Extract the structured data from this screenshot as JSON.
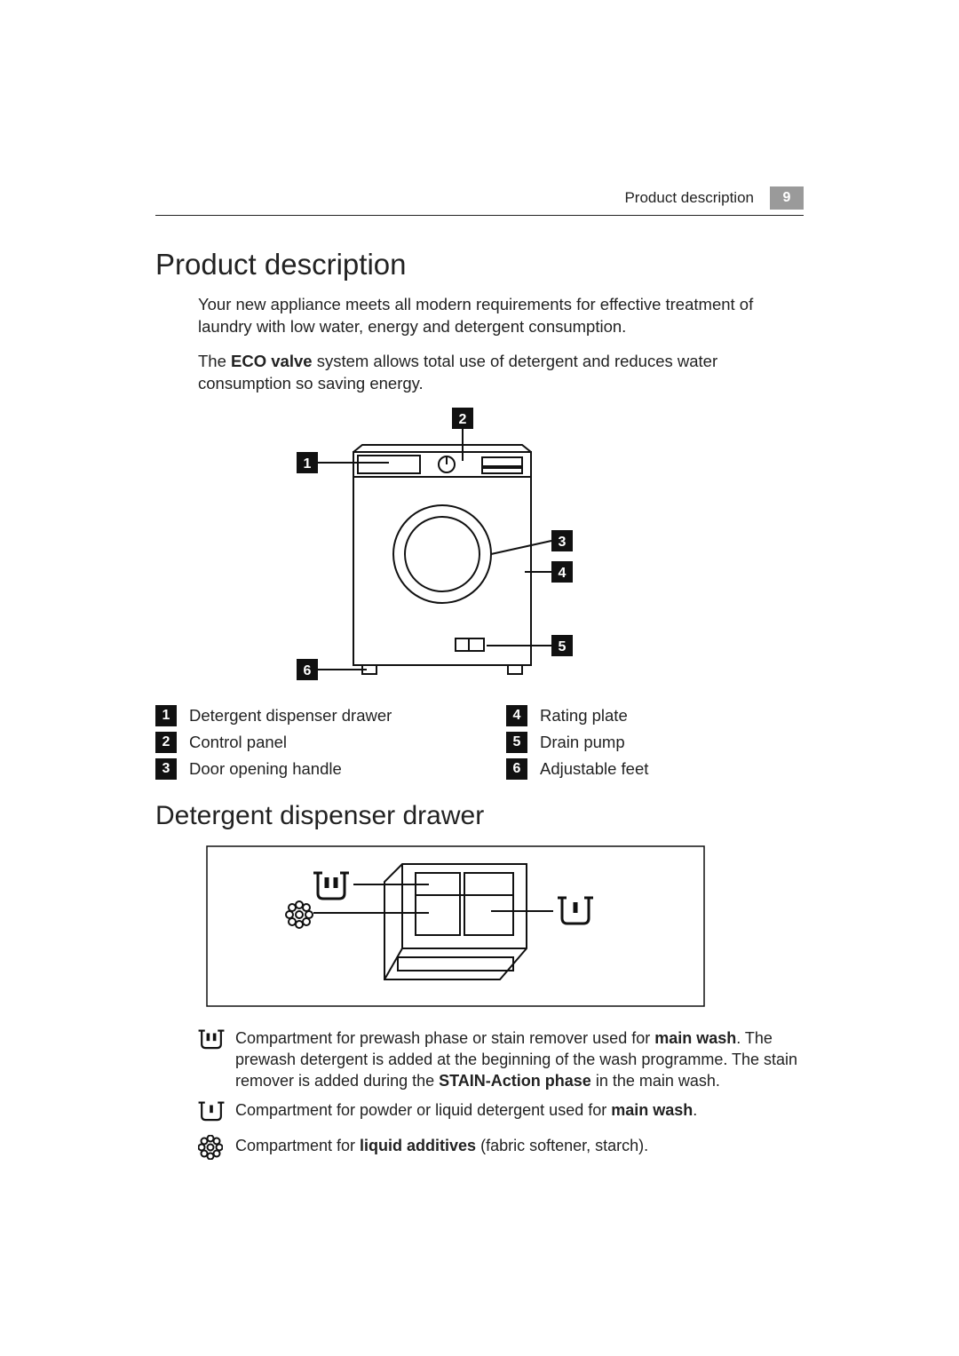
{
  "header": {
    "section_label": "Product description",
    "page_number": "9"
  },
  "section1": {
    "title": "Product description",
    "para1": "Your new appliance meets all modern requirements for effective treatment of laundry with low water, energy and detergent consumption.",
    "para2_pre": "The ",
    "para2_bold": "ECO valve",
    "para2_post": " system allows total use of detergent and reduces water consumption so saving energy."
  },
  "diagram": {
    "callouts": [
      "1",
      "2",
      "3",
      "4",
      "5",
      "6"
    ],
    "legend_left": [
      {
        "n": "1",
        "label": "Detergent dispenser drawer"
      },
      {
        "n": "2",
        "label": "Control panel"
      },
      {
        "n": "3",
        "label": "Door opening handle"
      }
    ],
    "legend_right": [
      {
        "n": "4",
        "label": "Rating plate"
      },
      {
        "n": "5",
        "label": "Drain pump"
      },
      {
        "n": "6",
        "label": "Adjustable feet"
      }
    ]
  },
  "section2": {
    "title": "Detergent dispenser drawer",
    "compartments": [
      {
        "icon": "prewash",
        "parts": [
          {
            "t": "Compartment for prewash phase or stain remover used for "
          },
          {
            "t": "main wash",
            "b": true
          },
          {
            "t": ". The prewash detergent is added at the beginning of the wash programme. The stain remover is added during the "
          },
          {
            "t": "STAIN-Action phase",
            "b": true
          },
          {
            "t": " in the main wash."
          }
        ]
      },
      {
        "icon": "mainwash",
        "parts": [
          {
            "t": "Compartment for powder or liquid detergent used for "
          },
          {
            "t": "main wash",
            "b": true
          },
          {
            "t": "."
          }
        ]
      },
      {
        "icon": "flower",
        "parts": [
          {
            "t": "Compartment for "
          },
          {
            "t": "liquid additives",
            "b": true
          },
          {
            "t": " (fabric softener, starch)."
          }
        ]
      }
    ]
  },
  "style": {
    "text_color": "#222222",
    "badge_bg": "#111111",
    "badge_fg": "#ffffff",
    "page_badge_bg": "#9a9a9a",
    "stroke": "#111111",
    "stroke_width": 2
  }
}
